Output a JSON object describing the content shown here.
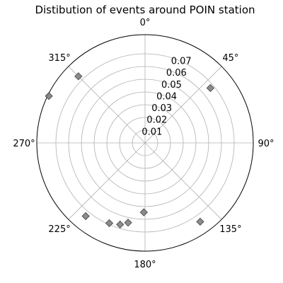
{
  "chart_data": {
    "type": "scatter",
    "projection": "polar",
    "title": "Distibution of events around POIN station",
    "theta_zero_location": "N",
    "theta_direction": "clockwise",
    "angular_ticks": [
      "0°",
      "45°",
      "90°",
      "135°",
      "180°",
      "225°",
      "270°",
      "315°"
    ],
    "radial_ticks": [
      "0.01",
      "0.02",
      "0.03",
      "0.04",
      "0.05",
      "0.06",
      "0.07"
    ],
    "radial_tick_values": [
      0.01,
      0.02,
      0.03,
      0.04,
      0.05,
      0.06,
      0.07
    ],
    "rlim": [
      0,
      0.085
    ],
    "grid": true,
    "marker": "diamond",
    "marker_color": "#808080",
    "marker_edge_color": "#555555",
    "points": [
      {
        "theta_deg": 315,
        "r": 0.074
      },
      {
        "theta_deg": 296,
        "r": 0.084
      },
      {
        "theta_deg": 50,
        "r": 0.067
      },
      {
        "theta_deg": 145,
        "r": 0.0755
      },
      {
        "theta_deg": 181,
        "r": 0.0545
      },
      {
        "theta_deg": 192,
        "r": 0.064
      },
      {
        "theta_deg": 197,
        "r": 0.067
      },
      {
        "theta_deg": 204,
        "r": 0.069
      },
      {
        "theta_deg": 219,
        "r": 0.074
      }
    ]
  }
}
